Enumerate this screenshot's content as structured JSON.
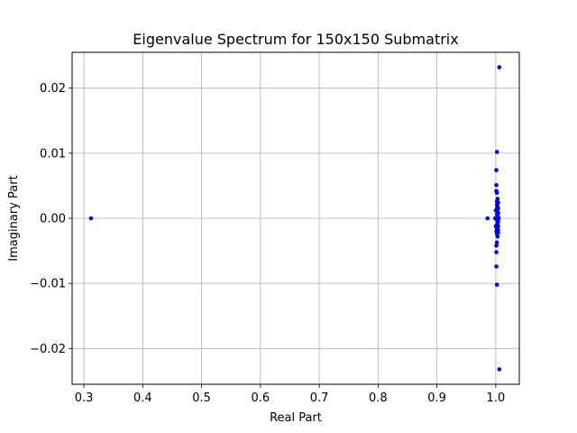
{
  "chart_data": {
    "type": "scatter",
    "title": "Eigenvalue Spectrum for 150x150 Submatrix",
    "xlabel": "Real Part",
    "ylabel": "Imaginary Part",
    "xlim": [
      0.28,
      1.04
    ],
    "ylim": [
      -0.0255,
      0.0255
    ],
    "xticks": [
      0.3,
      0.4,
      0.5,
      0.6,
      0.7,
      0.8,
      0.9,
      1.0
    ],
    "xtick_labels": [
      "0.3",
      "0.4",
      "0.5",
      "0.6",
      "0.7",
      "0.8",
      "0.9",
      "1.0"
    ],
    "yticks": [
      -0.02,
      -0.01,
      0.0,
      0.01,
      0.02
    ],
    "ytick_labels": [
      "−0.02",
      "−0.01",
      "0.00",
      "0.01",
      "0.02"
    ],
    "grid": true,
    "marker_color": "#0000ee",
    "points": [
      {
        "x": 0.312,
        "y": 0.0
      },
      {
        "x": 0.986,
        "y": 0.0
      },
      {
        "x": 1.006,
        "y": 0.0232
      },
      {
        "x": 1.006,
        "y": -0.0232
      },
      {
        "x": 1.002,
        "y": 0.0102
      },
      {
        "x": 1.002,
        "y": -0.0102
      },
      {
        "x": 1.001,
        "y": 0.0074
      },
      {
        "x": 1.001,
        "y": -0.0074
      },
      {
        "x": 1.001,
        "y": 0.0051
      },
      {
        "x": 1.001,
        "y": -0.0052
      },
      {
        "x": 1.001,
        "y": 0.0042
      },
      {
        "x": 1.002,
        "y": 0.0039
      },
      {
        "x": 1.001,
        "y": -0.0042
      },
      {
        "x": 1.002,
        "y": -0.0037
      },
      {
        "x": 1.003,
        "y": 0.003
      },
      {
        "x": 1.002,
        "y": 0.0026
      },
      {
        "x": 1.004,
        "y": 0.0024
      },
      {
        "x": 1.003,
        "y": -0.0028
      },
      {
        "x": 1.002,
        "y": -0.0024
      },
      {
        "x": 1.004,
        "y": -0.0022
      },
      {
        "x": 1.002,
        "y": 0.0021
      },
      {
        "x": 1.003,
        "y": 0.0018
      },
      {
        "x": 1.004,
        "y": 0.0015
      },
      {
        "x": 1.002,
        "y": 0.0013
      },
      {
        "x": 1.003,
        "y": 0.001
      },
      {
        "x": 1.004,
        "y": 0.0008
      },
      {
        "x": 1.002,
        "y": 0.0006
      },
      {
        "x": 1.003,
        "y": 0.0004
      },
      {
        "x": 1.004,
        "y": 0.0002
      },
      {
        "x": 0.999,
        "y": 0.0
      },
      {
        "x": 1.001,
        "y": 0.0
      },
      {
        "x": 1.003,
        "y": 0.0
      },
      {
        "x": 1.005,
        "y": 0.0
      },
      {
        "x": 1.002,
        "y": -0.0003
      },
      {
        "x": 1.004,
        "y": -0.0005
      },
      {
        "x": 1.003,
        "y": -0.0007
      },
      {
        "x": 1.002,
        "y": -0.001
      },
      {
        "x": 1.004,
        "y": -0.0012
      },
      {
        "x": 1.003,
        "y": -0.0014
      },
      {
        "x": 1.002,
        "y": -0.0016
      },
      {
        "x": 1.004,
        "y": -0.0018
      },
      {
        "x": 1.003,
        "y": -0.002
      },
      {
        "x": 1.001,
        "y": -0.002
      },
      {
        "x": 1.002,
        "y": 0.0016
      },
      {
        "x": 1.0,
        "y": 0.0012
      },
      {
        "x": 1.0,
        "y": -0.0012
      }
    ]
  }
}
